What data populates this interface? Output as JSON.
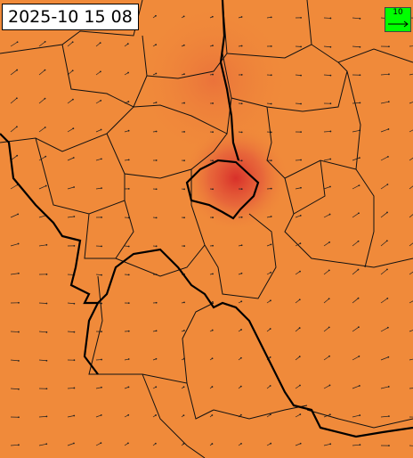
{
  "timestamp": "2025-10 15 08",
  "legend": {
    "label": "10"
  }
}
